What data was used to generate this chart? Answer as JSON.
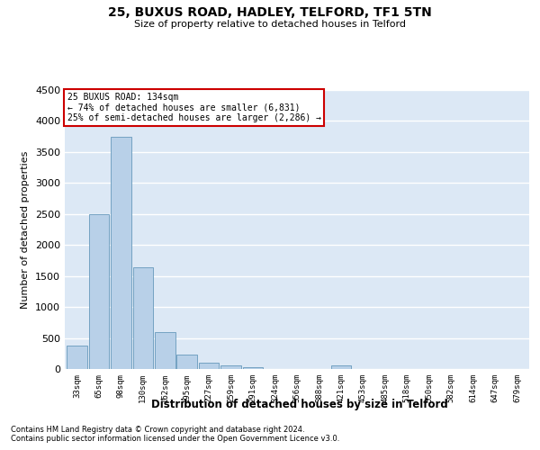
{
  "title": "25, BUXUS ROAD, HADLEY, TELFORD, TF1 5TN",
  "subtitle": "Size of property relative to detached houses in Telford",
  "xlabel": "Distribution of detached houses by size in Telford",
  "ylabel": "Number of detached properties",
  "categories": [
    "33sqm",
    "65sqm",
    "98sqm",
    "130sqm",
    "162sqm",
    "195sqm",
    "227sqm",
    "259sqm",
    "291sqm",
    "324sqm",
    "356sqm",
    "388sqm",
    "421sqm",
    "453sqm",
    "485sqm",
    "518sqm",
    "550sqm",
    "582sqm",
    "614sqm",
    "647sqm",
    "679sqm"
  ],
  "values": [
    375,
    2500,
    3750,
    1640,
    590,
    230,
    105,
    60,
    35,
    5,
    3,
    2,
    55,
    2,
    1,
    1,
    1,
    1,
    1,
    1,
    1
  ],
  "bar_color": "#b8d0e8",
  "bar_edge_color": "#6699bb",
  "property_label": "25 BUXUS ROAD: 134sqm",
  "annotation_line1": "← 74% of detached houses are smaller (6,831)",
  "annotation_line2": "25% of semi-detached houses are larger (2,286) →",
  "annotation_box_color": "#cc0000",
  "ylim": [
    0,
    4500
  ],
  "yticks": [
    0,
    500,
    1000,
    1500,
    2000,
    2500,
    3000,
    3500,
    4000,
    4500
  ],
  "bg_color": "#dce8f5",
  "grid_color": "#ffffff",
  "footer_line1": "Contains HM Land Registry data © Crown copyright and database right 2024.",
  "footer_line2": "Contains public sector information licensed under the Open Government Licence v3.0."
}
